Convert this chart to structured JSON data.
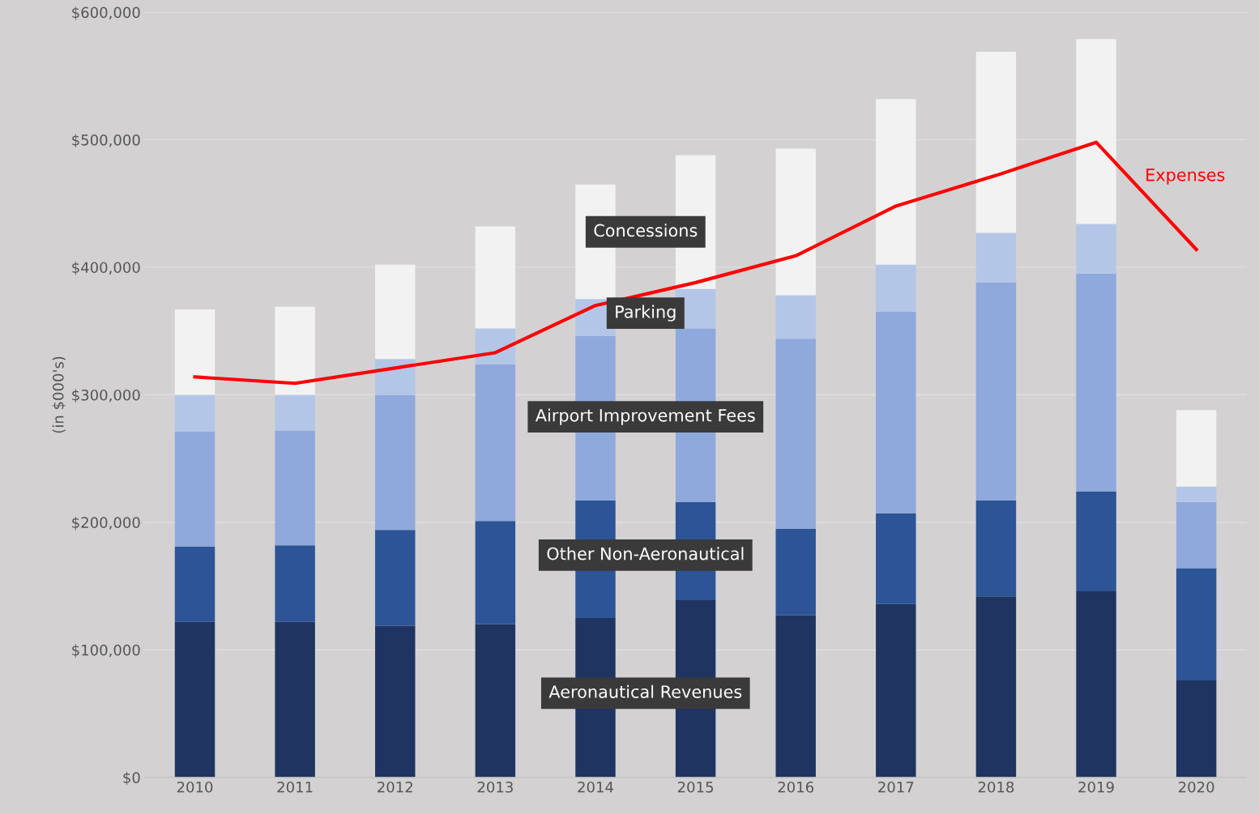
{
  "chart_data": {
    "type": "bar",
    "stacked": true,
    "ylabel": "(in $000's)",
    "categories": [
      "2010",
      "2011",
      "2012",
      "2013",
      "2014",
      "2015",
      "2016",
      "2017",
      "2018",
      "2019",
      "2020"
    ],
    "series": [
      {
        "name": "Aeronautical Revenues",
        "color": "#1f3461",
        "values": [
          122000,
          122000,
          119000,
          120000,
          125000,
          139000,
          127000,
          136000,
          142000,
          146000,
          76000
        ]
      },
      {
        "name": "Other Non-Aeronautical",
        "color": "#2c5496",
        "values": [
          59000,
          60000,
          75000,
          81000,
          92000,
          77000,
          68000,
          71000,
          75000,
          78000,
          88000
        ]
      },
      {
        "name": "Airport Improvement Fees",
        "color": "#8fa9dc",
        "values": [
          90000,
          90000,
          106000,
          123000,
          129000,
          136000,
          149000,
          158000,
          171000,
          171000,
          52000
        ]
      },
      {
        "name": "Parking",
        "color": "#b4c6e7",
        "values": [
          29000,
          28000,
          28000,
          28000,
          29000,
          31000,
          34000,
          37000,
          39000,
          39000,
          12000
        ]
      },
      {
        "name": "Concessions",
        "color": "#f2f2f2",
        "values": [
          67000,
          69000,
          74000,
          80000,
          90000,
          105000,
          115000,
          130000,
          142000,
          145000,
          60000
        ]
      },
      {
        "name": "Expenses",
        "type": "line",
        "color": "#ff0000",
        "values": [
          314000,
          309000,
          321000,
          333000,
          370000,
          388000,
          409000,
          448000,
          472000,
          498000,
          414000
        ]
      }
    ],
    "ylim": [
      0,
      600000
    ],
    "yticks": [
      {
        "value": 0,
        "label": "$0"
      },
      {
        "value": 100000,
        "label": "$100,000"
      },
      {
        "value": 200000,
        "label": "$200,000"
      },
      {
        "value": 300000,
        "label": "$300,000"
      },
      {
        "value": 400000,
        "label": "$400,000"
      },
      {
        "value": 500000,
        "label": "$500,000"
      },
      {
        "value": 600000,
        "label": "$600,000"
      }
    ],
    "grid": "y",
    "legend": false,
    "marker": "none",
    "line_style": "solid"
  }
}
